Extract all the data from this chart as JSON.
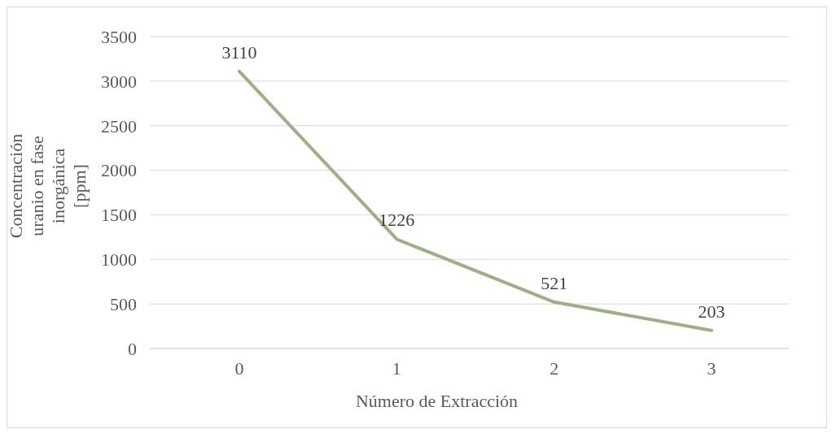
{
  "chart_data": {
    "type": "line",
    "xlabel": "Número de Extracción",
    "ylabel": "Concentración uranio en fase inorgánica [ppm]",
    "categories": [
      "0",
      "1",
      "2",
      "3"
    ],
    "series": [
      {
        "color": "#9cb084",
        "values": [
          3110,
          1226,
          521,
          203
        ]
      }
    ],
    "ylim": [
      0,
      3500
    ],
    "yticks": [
      0,
      500,
      1000,
      1500,
      2000,
      2500,
      3000,
      3500
    ],
    "grid": "y",
    "data_labels": true,
    "marker": "none",
    "line_style": "solid"
  }
}
